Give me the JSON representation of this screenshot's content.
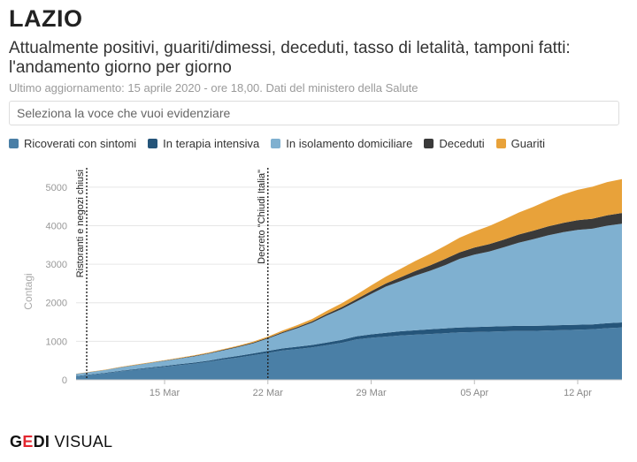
{
  "header": {
    "title": "LAZIO",
    "subtitle": "Attualmente positivi, guariti/dimessi, deceduti, tasso di letalità, tamponi fatti: l'andamento giorno per giorno",
    "note": "Ultimo aggiornamento: 15 aprile 2020 - ore 18,00. Dati del ministero della Salute"
  },
  "selector": {
    "placeholder": "Seleziona la voce che vuoi evidenziare"
  },
  "brand": {
    "gedi_pre": "G",
    "gedi_accent": "E",
    "gedi_post": "DI",
    "visual": " VISUAL"
  },
  "chart_data": {
    "type": "area",
    "stacked": true,
    "ylabel": "Contagi",
    "ylim": [
      0,
      5500
    ],
    "yticks": [
      0,
      1000,
      2000,
      3000,
      4000,
      5000
    ],
    "x_start": "2020-03-09",
    "xtick_labels": [
      "15 Mar",
      "22 Mar",
      "29 Mar",
      "05 Apr",
      "12 Apr"
    ],
    "xtick_dates": [
      "2020-03-15",
      "2020-03-22",
      "2020-03-29",
      "2020-04-05",
      "2020-04-12"
    ],
    "annotations": [
      {
        "date": "2020-03-09",
        "text": "Ristoranti e negozi chiusi"
      },
      {
        "date": "2020-03-22",
        "text": "Decreto \"Chiudi Italia\""
      }
    ],
    "x": [
      "2020-03-09",
      "2020-03-10",
      "2020-03-11",
      "2020-03-12",
      "2020-03-13",
      "2020-03-14",
      "2020-03-15",
      "2020-03-16",
      "2020-03-17",
      "2020-03-18",
      "2020-03-19",
      "2020-03-20",
      "2020-03-21",
      "2020-03-22",
      "2020-03-23",
      "2020-03-24",
      "2020-03-25",
      "2020-03-26",
      "2020-03-27",
      "2020-03-28",
      "2020-03-29",
      "2020-03-30",
      "2020-03-31",
      "2020-04-01",
      "2020-04-02",
      "2020-04-03",
      "2020-04-04",
      "2020-04-05",
      "2020-04-06",
      "2020-04-07",
      "2020-04-08",
      "2020-04-09",
      "2020-04-10",
      "2020-04-11",
      "2020-04-12",
      "2020-04-13",
      "2020-04-14",
      "2020-04-15"
    ],
    "series": [
      {
        "name": "Ricoverati con sintomi",
        "color": "#4a7fa6",
        "values": [
          90,
          130,
          170,
          220,
          260,
          300,
          340,
          380,
          420,
          470,
          530,
          580,
          640,
          700,
          760,
          800,
          840,
          900,
          960,
          1050,
          1090,
          1120,
          1150,
          1170,
          1190,
          1210,
          1230,
          1240,
          1250,
          1260,
          1270,
          1270,
          1280,
          1290,
          1300,
          1310,
          1340,
          1360
        ]
      },
      {
        "name": "In terapia intensiva",
        "color": "#25557a",
        "values": [
          10,
          12,
          14,
          16,
          18,
          20,
          22,
          25,
          28,
          30,
          35,
          40,
          45,
          50,
          55,
          60,
          65,
          70,
          75,
          80,
          90,
          100,
          110,
          115,
          120,
          125,
          130,
          130,
          130,
          130,
          130,
          130,
          130,
          130,
          130,
          130,
          130,
          130
        ]
      },
      {
        "name": "In isolamento domiciliare",
        "color": "#7fb0d0",
        "values": [
          50,
          60,
          70,
          85,
          100,
          115,
          130,
          145,
          160,
          180,
          200,
          230,
          260,
          320,
          400,
          480,
          580,
          700,
          800,
          900,
          1050,
          1200,
          1300,
          1420,
          1520,
          1640,
          1780,
          1880,
          1950,
          2050,
          2160,
          2250,
          2340,
          2410,
          2460,
          2480,
          2530,
          2560
        ]
      },
      {
        "name": "Deceduti",
        "color": "#3a3a3a",
        "values": [
          3,
          4,
          5,
          6,
          7,
          8,
          9,
          10,
          12,
          14,
          16,
          18,
          20,
          22,
          25,
          30,
          35,
          40,
          50,
          60,
          70,
          80,
          100,
          120,
          140,
          160,
          170,
          180,
          190,
          200,
          210,
          220,
          230,
          240,
          250,
          260,
          270,
          280
        ]
      },
      {
        "name": "Guariti",
        "color": "#e8a23a",
        "values": [
          5,
          6,
          7,
          8,
          9,
          10,
          11,
          12,
          14,
          16,
          18,
          20,
          25,
          30,
          40,
          50,
          60,
          80,
          100,
          120,
          150,
          180,
          220,
          260,
          300,
          340,
          380,
          420,
          470,
          520,
          570,
          620,
          680,
          740,
          790,
          830,
          860,
          880
        ]
      }
    ]
  }
}
